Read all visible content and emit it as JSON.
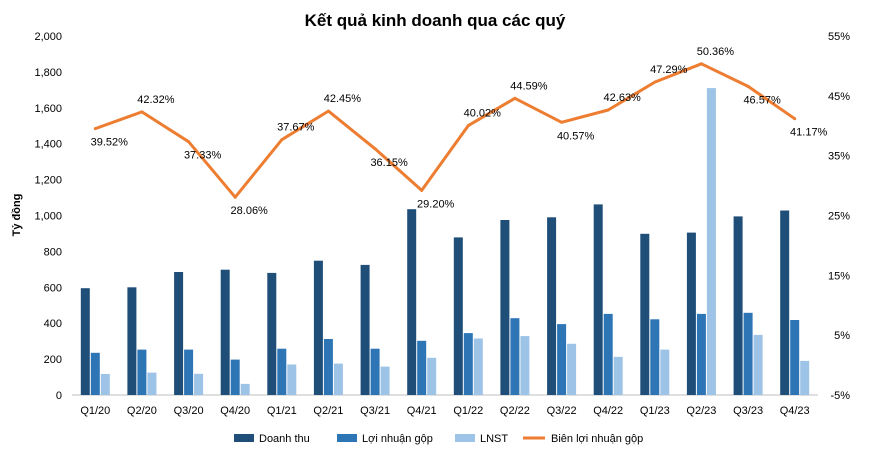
{
  "chart_data": {
    "type": "bar",
    "title": "Kết quả kinh doanh qua các quý",
    "ylabel": "Tỷ đồng",
    "ylabel_right": "",
    "xlabel": "",
    "categories": [
      "Q1/20",
      "Q2/20",
      "Q3/20",
      "Q4/20",
      "Q1/21",
      "Q2/21",
      "Q3/21",
      "Q4/21",
      "Q1/22",
      "Q2/22",
      "Q3/22",
      "Q4/22",
      "Q1/23",
      "Q2/23",
      "Q3/23",
      "Q4/23"
    ],
    "ylim": [
      0,
      2000
    ],
    "yticks": [
      "0",
      "200",
      "400",
      "600",
      "800",
      "1,000",
      "1,200",
      "1,400",
      "1,600",
      "1,800",
      "2,000"
    ],
    "ylim_right": [
      -5,
      55
    ],
    "yticks_right": [
      "-5%",
      "5%",
      "15%",
      "25%",
      "35%",
      "45%",
      "55%"
    ],
    "grid": false,
    "legend_position": "bottom",
    "series": [
      {
        "name": "Doanh thu",
        "kind": "bar",
        "color": "#1F4E79",
        "values": [
          595,
          600,
          685,
          698,
          680,
          748,
          725,
          1035,
          878,
          975,
          990,
          1062,
          898,
          905,
          995,
          1028
        ]
      },
      {
        "name": "Lợi nhuận gộp",
        "kind": "bar",
        "color": "#2E75B6",
        "values": [
          235,
          253,
          253,
          197,
          258,
          312,
          258,
          302,
          345,
          428,
          395,
          452,
          422,
          452,
          458,
          418
        ]
      },
      {
        "name": "LNST",
        "kind": "bar",
        "color": "#9DC3E6",
        "values": [
          117,
          125,
          118,
          62,
          170,
          175,
          158,
          207,
          315,
          328,
          285,
          212,
          253,
          1710,
          335,
          190
        ]
      },
      {
        "name": "Biên lợi nhuận gộp",
        "kind": "line",
        "axis": "right",
        "color": "#ED7D31",
        "values": [
          39.52,
          42.32,
          37.33,
          28.06,
          37.67,
          42.45,
          36.15,
          29.2,
          40.02,
          44.59,
          40.57,
          42.63,
          47.29,
          50.36,
          46.57,
          41.17
        ],
        "labels": [
          "39.52%",
          "42.32%",
          "37.33%",
          "28.06%",
          "37.67%",
          "42.45%",
          "36.15%",
          "29.20%",
          "40.02%",
          "44.59%",
          "40.57%",
          "42.63%",
          "47.29%",
          "50.36%",
          "46.57%",
          "41.17%"
        ]
      }
    ]
  }
}
